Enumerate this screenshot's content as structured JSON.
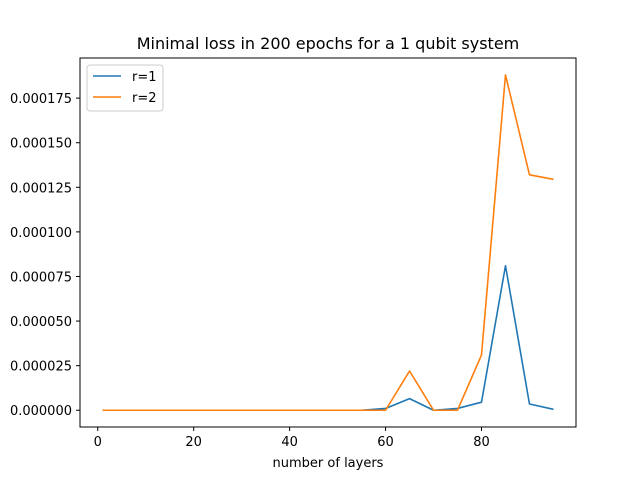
{
  "chart_data": {
    "type": "line",
    "title": "Minimal loss in 200 epochs for a 1 qubit system",
    "xlabel": "number of layers",
    "ylabel": "",
    "xlim": [
      -3.7,
      99.7
    ],
    "ylim": [
      -9.4e-06,
      0.0001975
    ],
    "xticks": [
      0,
      20,
      40,
      60,
      80
    ],
    "xtick_labels": [
      "0",
      "20",
      "40",
      "60",
      "80"
    ],
    "yticks": [
      0,
      2.5e-05,
      5e-05,
      7.5e-05,
      0.0001,
      0.000125,
      0.00015,
      0.000175
    ],
    "ytick_labels": [
      "0.000000",
      "0.000025",
      "0.000050",
      "0.000075",
      "0.000100",
      "0.000125",
      "0.000150",
      "0.000175"
    ],
    "grid": false,
    "legend_position": "top-left",
    "x": [
      1,
      5,
      10,
      15,
      20,
      25,
      30,
      35,
      40,
      45,
      50,
      55,
      60,
      65,
      70,
      75,
      80,
      85,
      90,
      95
    ],
    "series": [
      {
        "name": "r=1",
        "color": "#1f77b4",
        "values": [
          0,
          0,
          0,
          0,
          0,
          0,
          0,
          0,
          0,
          0,
          0,
          0,
          1e-06,
          6.5e-06,
          0,
          1e-06,
          4.5e-06,
          8.1e-05,
          3.5e-06,
          5e-07
        ]
      },
      {
        "name": "r=2",
        "color": "#ff7f0e",
        "values": [
          0,
          0,
          0,
          0,
          0,
          0,
          0,
          0,
          0,
          0,
          0,
          0,
          0,
          2.2e-05,
          0,
          0,
          3.1e-05,
          0.000188,
          0.000132,
          0.0001295
        ]
      }
    ]
  }
}
